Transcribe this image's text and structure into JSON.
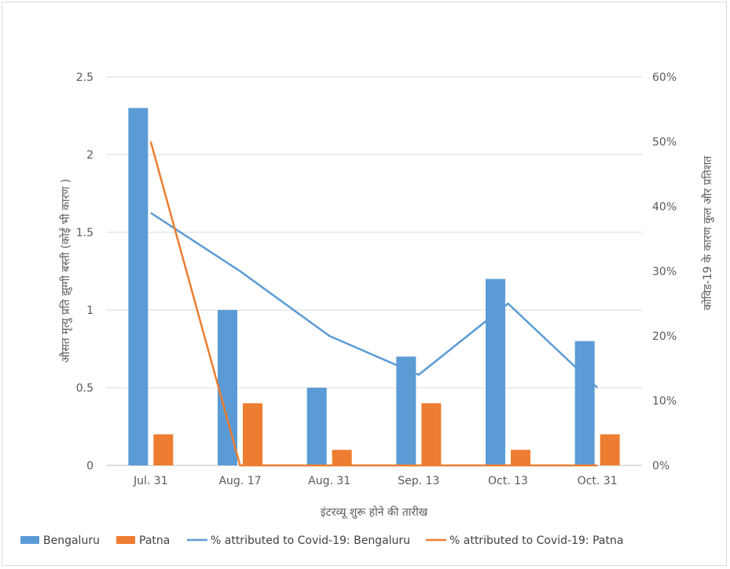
{
  "chart_data": {
    "type": "bar",
    "categories": [
      "Jul. 31",
      "Aug. 17",
      "Aug. 31",
      "Sep. 13",
      "Oct. 13",
      "Oct. 31"
    ],
    "xlabel": "इंटरव्यू शुरू होने की तारीख",
    "ylabel": "औसत मृत्यु प्रति झुग्गी बस्ती (कोई भी कारण )",
    "y2label": "कोविड-19 के कारण कुल और प्रतिशत",
    "ylim": [
      0,
      2.5
    ],
    "yticks": [
      "0",
      "0.5",
      "1",
      "1.5",
      "2",
      "2.5"
    ],
    "y2lim": [
      0,
      60
    ],
    "y2ticks": [
      "0%",
      "10%",
      "20%",
      "30%",
      "40%",
      "50%",
      "60%"
    ],
    "grid": true,
    "legend_position": "bottom",
    "bar_series": [
      {
        "name": "Bengaluru",
        "color": "#5b9bd5",
        "values": [
          2.3,
          1.0,
          0.5,
          0.7,
          1.2,
          0.8
        ]
      },
      {
        "name": "Patna",
        "color": "#ed7d31",
        "values": [
          0.2,
          0.4,
          0.1,
          0.4,
          0.1,
          0.2
        ]
      }
    ],
    "line_series": [
      {
        "name": "% attributed to Covid-19: Bengaluru",
        "color": "#5b9bd5",
        "values": [
          39,
          30,
          20,
          14,
          25,
          12
        ]
      },
      {
        "name": "% attributed to Covid-19: Patna",
        "color": "#ed7d31",
        "values": [
          50,
          0,
          0,
          0,
          0,
          0
        ]
      }
    ]
  }
}
